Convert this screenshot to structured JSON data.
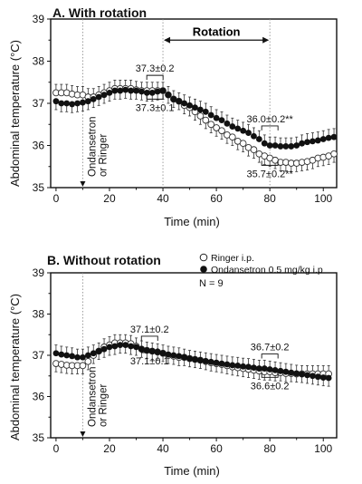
{
  "chart_data": [
    {
      "type": "line",
      "title": "A. With rotation",
      "xlabel": "Time (min)",
      "ylabel": "Abdominal temperature (°C)",
      "xlim": [
        -2,
        105
      ],
      "ylim": [
        35,
        39
      ],
      "xticks": [
        "0",
        "20",
        "40",
        "60",
        "80",
        "100"
      ],
      "yticks": [
        "35",
        "36",
        "37",
        "38",
        "39"
      ],
      "rotation_label": "Rotation",
      "rotation_range": [
        40,
        80
      ],
      "injection_time": 10,
      "injection_label": [
        "Ondansetron",
        "or Ringer"
      ],
      "annotations": [
        {
          "text": "37.3±0.2",
          "x": 37,
          "y": 37.75
        },
        {
          "text": "37.3±0.1",
          "x": 37,
          "y": 36.82
        },
        {
          "text": "36.0±0.2**",
          "x": 80,
          "y": 36.55
        },
        {
          "text": "35.7±0.2**",
          "x": 80,
          "y": 35.25
        }
      ],
      "x": [
        0,
        2,
        4,
        6,
        8,
        10,
        12,
        14,
        16,
        18,
        20,
        22,
        24,
        26,
        28,
        30,
        32,
        34,
        36,
        38,
        40,
        42,
        44,
        46,
        48,
        50,
        52,
        54,
        56,
        58,
        60,
        62,
        64,
        66,
        68,
        70,
        72,
        74,
        76,
        78,
        80,
        82,
        84,
        86,
        88,
        90,
        92,
        94,
        96,
        98,
        100,
        102,
        104
      ],
      "series": [
        {
          "name": "Ringer i.p.",
          "marker": "open-circle",
          "values": [
            37.25,
            37.25,
            37.25,
            37.22,
            37.2,
            37.2,
            37.15,
            37.15,
            37.2,
            37.25,
            37.3,
            37.35,
            37.35,
            37.35,
            37.35,
            37.32,
            37.3,
            37.3,
            37.3,
            37.3,
            37.3,
            37.2,
            37.1,
            37.05,
            36.95,
            36.9,
            36.8,
            36.7,
            36.6,
            36.5,
            36.42,
            36.35,
            36.25,
            36.2,
            36.1,
            36.05,
            35.95,
            35.9,
            35.8,
            35.75,
            35.7,
            35.65,
            35.6,
            35.6,
            35.58,
            35.58,
            35.6,
            35.62,
            35.65,
            35.7,
            35.72,
            35.75,
            35.8
          ],
          "error": 0.2
        },
        {
          "name": "Ondansetron 0.5 mg/kg i.p",
          "marker": "filled-circle",
          "values": [
            37.05,
            37.0,
            37.0,
            36.98,
            37.0,
            37.02,
            37.05,
            37.1,
            37.15,
            37.2,
            37.25,
            37.3,
            37.3,
            37.32,
            37.3,
            37.3,
            37.28,
            37.25,
            37.25,
            37.28,
            37.3,
            37.2,
            37.1,
            37.05,
            37.0,
            36.95,
            36.9,
            36.85,
            36.8,
            36.72,
            36.65,
            36.6,
            36.52,
            36.45,
            36.4,
            36.35,
            36.3,
            36.22,
            36.15,
            36.05,
            36.0,
            36.0,
            35.98,
            35.98,
            35.98,
            36.0,
            36.05,
            36.08,
            36.1,
            36.12,
            36.15,
            36.18,
            36.2
          ],
          "error": 0.2
        }
      ]
    },
    {
      "type": "line",
      "title": "B. Without rotation",
      "xlabel": "Time (min)",
      "ylabel": "Abdominal temperature (°C)",
      "xlim": [
        -2,
        105
      ],
      "ylim": [
        35,
        39
      ],
      "xticks": [
        "0",
        "20",
        "40",
        "60",
        "80",
        "100"
      ],
      "yticks": [
        "35",
        "36",
        "37",
        "38",
        "39"
      ],
      "injection_time": 10,
      "injection_label": [
        "Ondansetron",
        "or Ringer"
      ],
      "legend": [
        "Ringer i.p.",
        "Ondansetron 0.5 mg/kg i.p"
      ],
      "n_label": "N = 9",
      "annotations": [
        {
          "text": "37.1±0.2",
          "x": 35,
          "y": 37.55
        },
        {
          "text": "37.1±0.1",
          "x": 35,
          "y": 36.78
        },
        {
          "text": "36.7±0.2",
          "x": 80,
          "y": 37.12
        },
        {
          "text": "36.6±0.2",
          "x": 80,
          "y": 36.18
        }
      ],
      "x": [
        0,
        2,
        4,
        6,
        8,
        10,
        12,
        14,
        16,
        18,
        20,
        22,
        24,
        26,
        28,
        30,
        32,
        34,
        36,
        38,
        40,
        42,
        44,
        46,
        48,
        50,
        52,
        54,
        56,
        58,
        60,
        62,
        64,
        66,
        68,
        70,
        72,
        74,
        76,
        78,
        80,
        82,
        84,
        86,
        88,
        90,
        92,
        94,
        96,
        98,
        100,
        102
      ],
      "series": [
        {
          "name": "Ringer i.p.",
          "marker": "open-circle",
          "values": [
            36.8,
            36.78,
            36.76,
            36.75,
            36.75,
            36.75,
            36.85,
            37.0,
            37.1,
            37.2,
            37.25,
            37.3,
            37.3,
            37.3,
            37.28,
            37.22,
            37.15,
            37.12,
            37.1,
            37.08,
            37.05,
            37.0,
            36.98,
            36.95,
            36.95,
            36.92,
            36.9,
            36.88,
            36.85,
            36.82,
            36.8,
            36.78,
            36.75,
            36.72,
            36.7,
            36.68,
            36.66,
            36.64,
            36.62,
            36.6,
            36.6,
            36.58,
            36.58,
            36.56,
            36.56,
            36.55,
            36.55,
            36.55,
            36.55,
            36.55,
            36.55,
            36.55
          ],
          "error": 0.2
        },
        {
          "name": "Ondansetron 0.5 mg/kg i.p",
          "marker": "filled-circle",
          "values": [
            37.05,
            37.02,
            37.0,
            36.98,
            36.95,
            36.95,
            37.0,
            37.05,
            37.1,
            37.15,
            37.2,
            37.22,
            37.25,
            37.25,
            37.22,
            37.2,
            37.15,
            37.12,
            37.1,
            37.08,
            37.05,
            37.02,
            37.0,
            36.98,
            36.95,
            36.92,
            36.9,
            36.88,
            36.86,
            36.84,
            36.82,
            36.8,
            36.78,
            36.76,
            36.75,
            36.73,
            36.72,
            36.7,
            36.68,
            36.68,
            36.66,
            36.64,
            36.62,
            36.6,
            36.58,
            36.56,
            36.54,
            36.52,
            36.5,
            36.48,
            36.46,
            36.45
          ],
          "error": 0.2
        }
      ]
    }
  ]
}
